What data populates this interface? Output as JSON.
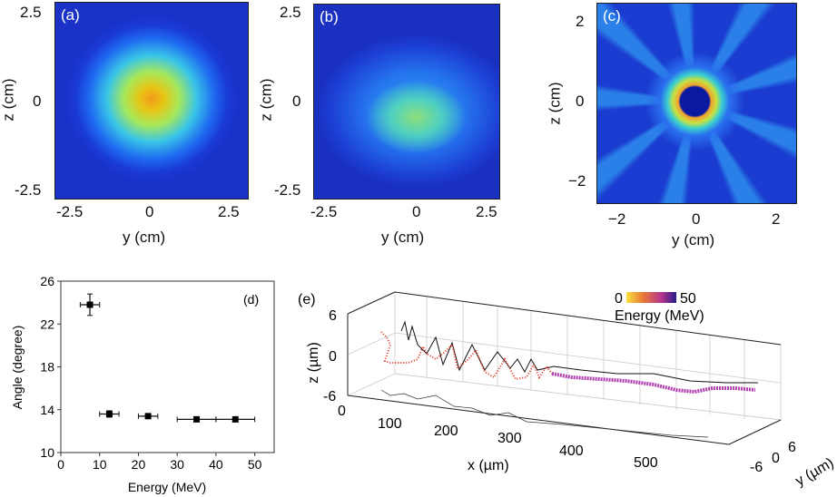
{
  "panels": {
    "a": {
      "label": "(a)",
      "xlabel": "y (cm)",
      "ylabel": "z (cm)",
      "xticks": [
        "-2.5",
        "0",
        "2.5"
      ],
      "yticks": [
        "2.5",
        "0",
        "-2.5"
      ]
    },
    "b": {
      "label": "(b)",
      "xlabel": "y (cm)",
      "ylabel": "z (cm)",
      "xticks": [
        "-2.5",
        "0",
        "2.5"
      ],
      "yticks": [
        "2.5",
        "0",
        "-2.5"
      ]
    },
    "c": {
      "label": "(c)",
      "xlabel": "y (cm)",
      "ylabel": "z (cm)",
      "xticks": [
        "−2",
        "0",
        "2"
      ],
      "yticks": [
        "2",
        "0",
        "−2"
      ]
    },
    "e": {
      "label": "(e)",
      "xlabel": "x (µm)",
      "ylabel": "z (µm)",
      "y3label": "y (µm)",
      "xticks": [
        "0",
        "100",
        "200",
        "300",
        "400",
        "500"
      ],
      "zticks": [
        "6",
        "0",
        "-6"
      ],
      "yticks": [
        "6",
        "0",
        "-6"
      ],
      "colorbar": {
        "min": "0",
        "max": "50",
        "label": "Energy (MeV)",
        "colors": [
          "#f9e03a",
          "#e8743b",
          "#b5368c",
          "#2a1a8a"
        ]
      }
    }
  },
  "chart_data": {
    "type": "scatter",
    "label": "(d)",
    "xlabel": "Energy (MeV)",
    "ylabel": "Angle (degree)",
    "xlim": [
      0,
      55
    ],
    "ylim": [
      10,
      26
    ],
    "xticks": [
      "0",
      "10",
      "20",
      "30",
      "40",
      "50"
    ],
    "yticks": [
      "10",
      "14",
      "18",
      "22",
      "26"
    ],
    "points": [
      {
        "x": 7.5,
        "y": 23.8,
        "xerr": 2.5,
        "yerr": 1.0
      },
      {
        "x": 12.5,
        "y": 13.6,
        "xerr": 2.5,
        "yerr": 0.3
      },
      {
        "x": 22.5,
        "y": 13.4,
        "xerr": 2.5,
        "yerr": 0.15
      },
      {
        "x": 35,
        "y": 13.1,
        "xerr": 5,
        "yerr": 0.2
      },
      {
        "x": 45,
        "y": 13.1,
        "xerr": 5,
        "yerr": 0.15
      }
    ]
  }
}
